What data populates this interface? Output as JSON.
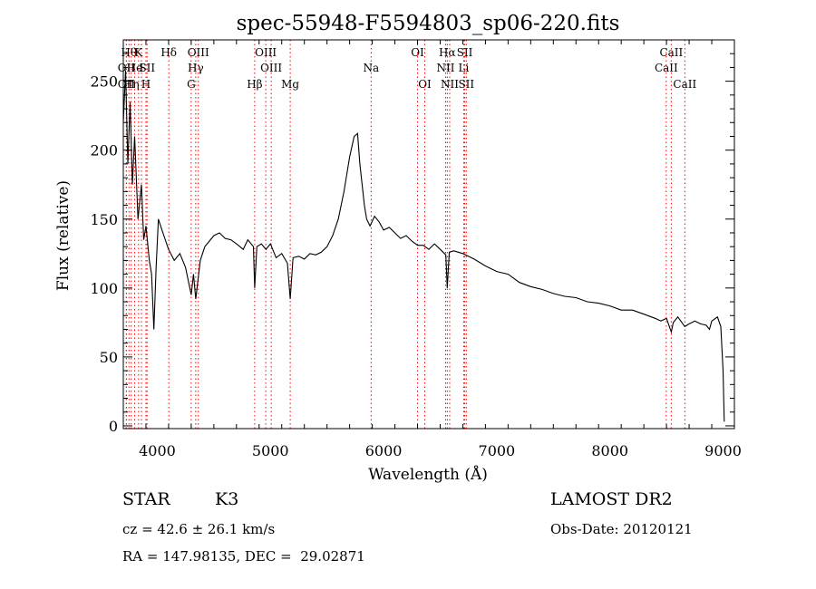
{
  "chart_data": {
    "type": "line",
    "title": "spec-55948-F5594803_sp06-220.fits",
    "xlabel": "Wavelength (Å)",
    "ylabel": "Flux (relative)",
    "xlim": [
      3700,
      9100
    ],
    "ylim": [
      -2,
      280
    ],
    "x_ticks": [
      4000,
      5000,
      6000,
      7000,
      8000,
      9000
    ],
    "y_ticks": [
      0,
      50,
      100,
      150,
      200,
      250
    ],
    "grid": false,
    "line_color": "#000000",
    "marker_color": "#ff0000",
    "series": [
      {
        "x": [
          3700,
          3720,
          3740,
          3760,
          3780,
          3800,
          3830,
          3860,
          3880,
          3900,
          3930,
          3950,
          3970,
          3990,
          4010,
          4050,
          4100,
          4150,
          4200,
          4250,
          4300,
          4320,
          4340,
          4380,
          4420,
          4470,
          4500,
          4550,
          4600,
          4650,
          4700,
          4760,
          4800,
          4850,
          4861,
          4880,
          4920,
          4960,
          5000,
          5050,
          5100,
          5150,
          5175,
          5200,
          5250,
          5300,
          5350,
          5400,
          5450,
          5500,
          5550,
          5600,
          5650,
          5700,
          5740,
          5770,
          5790,
          5810,
          5830,
          5850,
          5880,
          5920,
          5960,
          6000,
          6050,
          6100,
          6150,
          6200,
          6250,
          6300,
          6350,
          6400,
          6450,
          6500,
          6550,
          6563,
          6580,
          6620,
          6700,
          6800,
          6900,
          7000,
          7100,
          7200,
          7300,
          7400,
          7500,
          7600,
          7700,
          7800,
          7900,
          8000,
          8100,
          8200,
          8300,
          8400,
          8450,
          8500,
          8542,
          8560,
          8600,
          8662,
          8700,
          8750,
          8800,
          8850,
          8880,
          8900,
          8950,
          8980,
          9000,
          9010
        ],
        "y": [
          220,
          258,
          190,
          235,
          175,
          210,
          150,
          175,
          135,
          145,
          120,
          110,
          70,
          115,
          150,
          140,
          128,
          120,
          125,
          115,
          95,
          110,
          92,
          120,
          130,
          135,
          138,
          140,
          136,
          135,
          132,
          128,
          135,
          130,
          100,
          130,
          132,
          128,
          132,
          122,
          125,
          118,
          92,
          122,
          123,
          121,
          125,
          124,
          126,
          130,
          138,
          150,
          170,
          195,
          210,
          212,
          190,
          175,
          160,
          150,
          145,
          152,
          148,
          142,
          144,
          140,
          136,
          138,
          134,
          131,
          131,
          128,
          132,
          128,
          124,
          100,
          126,
          127,
          125,
          121,
          116,
          112,
          110,
          104,
          101,
          99,
          96,
          94,
          93,
          90,
          89,
          87,
          84,
          84,
          81,
          78,
          76,
          78,
          68,
          75,
          79,
          72,
          74,
          76,
          74,
          73,
          70,
          76,
          79,
          72,
          40,
          3
        ]
      }
    ],
    "line_markers": [
      {
        "x": 3727,
        "label": "OII",
        "row": 2
      },
      {
        "x": 3727,
        "label": "OII",
        "row": 3
      },
      {
        "x": 3750,
        "label": "Hθ",
        "row": 1
      },
      {
        "x": 3770,
        "label": "Hη",
        "row": 3
      },
      {
        "x": 3800,
        "label": "He",
        "row": 2
      },
      {
        "x": 3835,
        "label": "K",
        "row": 1
      },
      {
        "x": 3860,
        "label": "I",
        "row": 2
      },
      {
        "x": 3900,
        "label": "H",
        "row": 3
      },
      {
        "x": 3910,
        "label": "SII",
        "row": 2
      },
      {
        "x": 4102,
        "label": "Hδ",
        "row": 1
      },
      {
        "x": 4300,
        "label": "G",
        "row": 3
      },
      {
        "x": 4340,
        "label": "Hγ",
        "row": 2
      },
      {
        "x": 4363,
        "label": "OIII",
        "row": 1
      },
      {
        "x": 4861,
        "label": "Hβ",
        "row": 3
      },
      {
        "x": 4959,
        "label": "OIII",
        "row": 1
      },
      {
        "x": 5007,
        "label": "OIII",
        "row": 2
      },
      {
        "x": 5175,
        "label": "Mg",
        "row": 3
      },
      {
        "x": 5890,
        "label": "Na",
        "row": 2
      },
      {
        "x": 6300,
        "label": "OI",
        "row": 1
      },
      {
        "x": 6364,
        "label": "OI",
        "row": 3
      },
      {
        "x": 6548,
        "label": "NII",
        "row": 2
      },
      {
        "x": 6563,
        "label": "Hα",
        "row": 1
      },
      {
        "x": 6584,
        "label": "NII",
        "row": 3
      },
      {
        "x": 6708,
        "label": "Li",
        "row": 2
      },
      {
        "x": 6717,
        "label": "SII",
        "row": 1
      },
      {
        "x": 6731,
        "label": "SII",
        "row": 3
      },
      {
        "x": 8498,
        "label": "CaII",
        "row": 2
      },
      {
        "x": 8542,
        "label": "CaII",
        "row": 1
      },
      {
        "x": 8662,
        "label": "CaII",
        "row": 3
      }
    ]
  },
  "info": {
    "object_class": "STAR",
    "subclass": "K3",
    "redshift": "cz = 42.6 ± 26.1 km/s",
    "coords": "RA = 147.98135, DEC =  29.02871",
    "survey": "LAMOST DR2",
    "obs_date": "Obs-Date: 20120121"
  }
}
